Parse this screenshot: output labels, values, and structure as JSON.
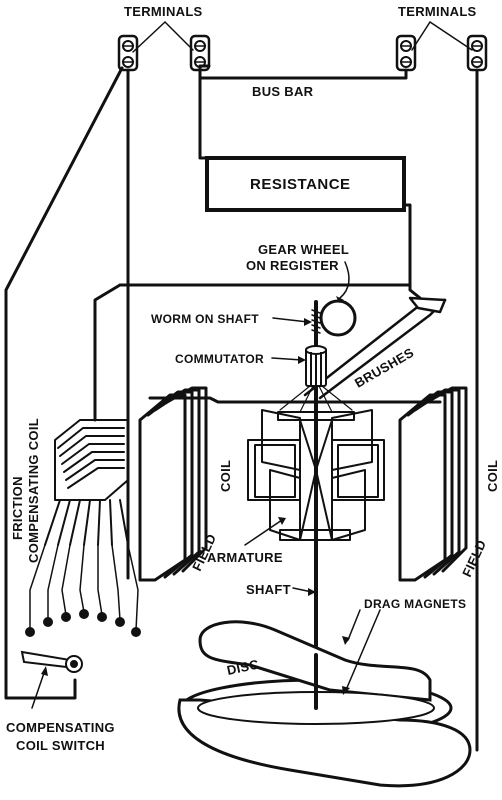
{
  "labels": {
    "terminals_left": "TERMINALS",
    "terminals_right": "TERMINALS",
    "bus_bar": "BUS BAR",
    "resistance": "RESISTANCE",
    "gear_wheel_line1": "GEAR WHEEL",
    "gear_wheel_line2": "ON REGISTER",
    "worm_on_shaft": "WORM ON SHAFT",
    "commutator": "COMMUTATOR",
    "brushes": "BRUSHES",
    "friction_line1": "FRICTION",
    "friction_line2": "COMPENSATING COIL",
    "field_left": "FIELD",
    "coil_left": "COIL",
    "field_right": "FIELD",
    "coil_right": "COIL",
    "armature": "ARMATURE",
    "shaft": "SHAFT",
    "drag_magnets": "DRAG MAGNETS",
    "disc": "DISC",
    "switch_line1": "COMPENSATING",
    "switch_line2": "COIL SWITCH"
  }
}
